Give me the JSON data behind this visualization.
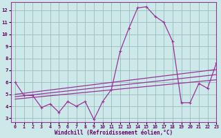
{
  "x": [
    0,
    1,
    2,
    3,
    4,
    5,
    6,
    7,
    8,
    9,
    10,
    11,
    12,
    13,
    14,
    15,
    16,
    17,
    18,
    19,
    20,
    21,
    22,
    23
  ],
  "y_main": [
    6.0,
    4.9,
    4.9,
    3.9,
    4.2,
    3.5,
    4.4,
    4.0,
    4.4,
    2.9,
    4.4,
    5.4,
    8.6,
    10.5,
    12.2,
    12.3,
    11.5,
    11.0,
    9.4,
    4.3,
    4.3,
    5.9,
    5.5,
    7.6
  ],
  "y_trend1": [
    4.6,
    4.67,
    4.74,
    4.81,
    4.88,
    4.95,
    5.02,
    5.09,
    5.16,
    5.23,
    5.3,
    5.37,
    5.44,
    5.51,
    5.58,
    5.65,
    5.72,
    5.79,
    5.86,
    5.93,
    6.0,
    6.07,
    6.14,
    6.21
  ],
  "y_trend2": [
    4.8,
    4.88,
    4.96,
    5.04,
    5.12,
    5.2,
    5.28,
    5.36,
    5.44,
    5.52,
    5.6,
    5.68,
    5.76,
    5.84,
    5.92,
    6.0,
    6.08,
    6.16,
    6.24,
    6.32,
    6.4,
    6.48,
    6.56,
    6.64
  ],
  "y_trend3": [
    5.0,
    5.09,
    5.18,
    5.27,
    5.36,
    5.45,
    5.54,
    5.63,
    5.72,
    5.81,
    5.9,
    5.99,
    6.08,
    6.17,
    6.26,
    6.35,
    6.44,
    6.53,
    6.62,
    6.71,
    6.8,
    6.89,
    6.98,
    7.07
  ],
  "line_color": "#993399",
  "bg_color": "#cce8e8",
  "grid_color": "#99bbbb",
  "xlabel": "Windchill (Refroidissement éolien,°C)",
  "xlim": [
    -0.5,
    23
  ],
  "ylim": [
    2.7,
    12.7
  ],
  "yticks": [
    3,
    4,
    5,
    6,
    7,
    8,
    9,
    10,
    11,
    12
  ],
  "xticks": [
    0,
    1,
    2,
    3,
    4,
    5,
    6,
    7,
    8,
    9,
    10,
    11,
    12,
    13,
    14,
    15,
    16,
    17,
    18,
    19,
    20,
    21,
    22,
    23
  ]
}
